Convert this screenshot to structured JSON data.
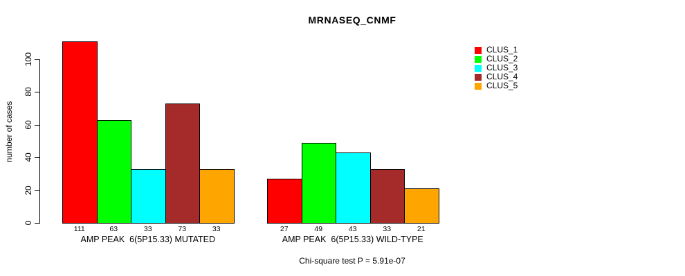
{
  "figure": {
    "title": "MRNASEQ_CNMF",
    "footnote": "Chi-square test P = 5.91e-07"
  },
  "chart_data": {
    "type": "bar",
    "title": "MRNASEQ_CNMF",
    "ylabel": "number of cases",
    "xlabel": "",
    "ylim": [
      0,
      115
    ],
    "yticks": [
      0,
      20,
      40,
      60,
      80,
      100
    ],
    "grid": false,
    "bar_border_color": "#000000",
    "legend_position": "top-right",
    "value_labels_shown": true,
    "categories": [
      "AMP PEAK  6(5P15.33) MUTATED",
      "AMP PEAK  6(5P15.33) WILD-TYPE"
    ],
    "series": [
      {
        "name": "CLUS_1",
        "color": "#ff0000",
        "values": [
          111,
          27
        ]
      },
      {
        "name": "CLUS_2",
        "color": "#00ff00",
        "values": [
          63,
          49
        ]
      },
      {
        "name": "CLUS_3",
        "color": "#00ffff",
        "values": [
          33,
          43
        ]
      },
      {
        "name": "CLUS_4",
        "color": "#a52a2a",
        "values": [
          73,
          33
        ]
      },
      {
        "name": "CLUS_5",
        "color": "#ffa500",
        "values": [
          33,
          21
        ]
      }
    ],
    "annotation": "Chi-square test P = 5.91e-07"
  }
}
